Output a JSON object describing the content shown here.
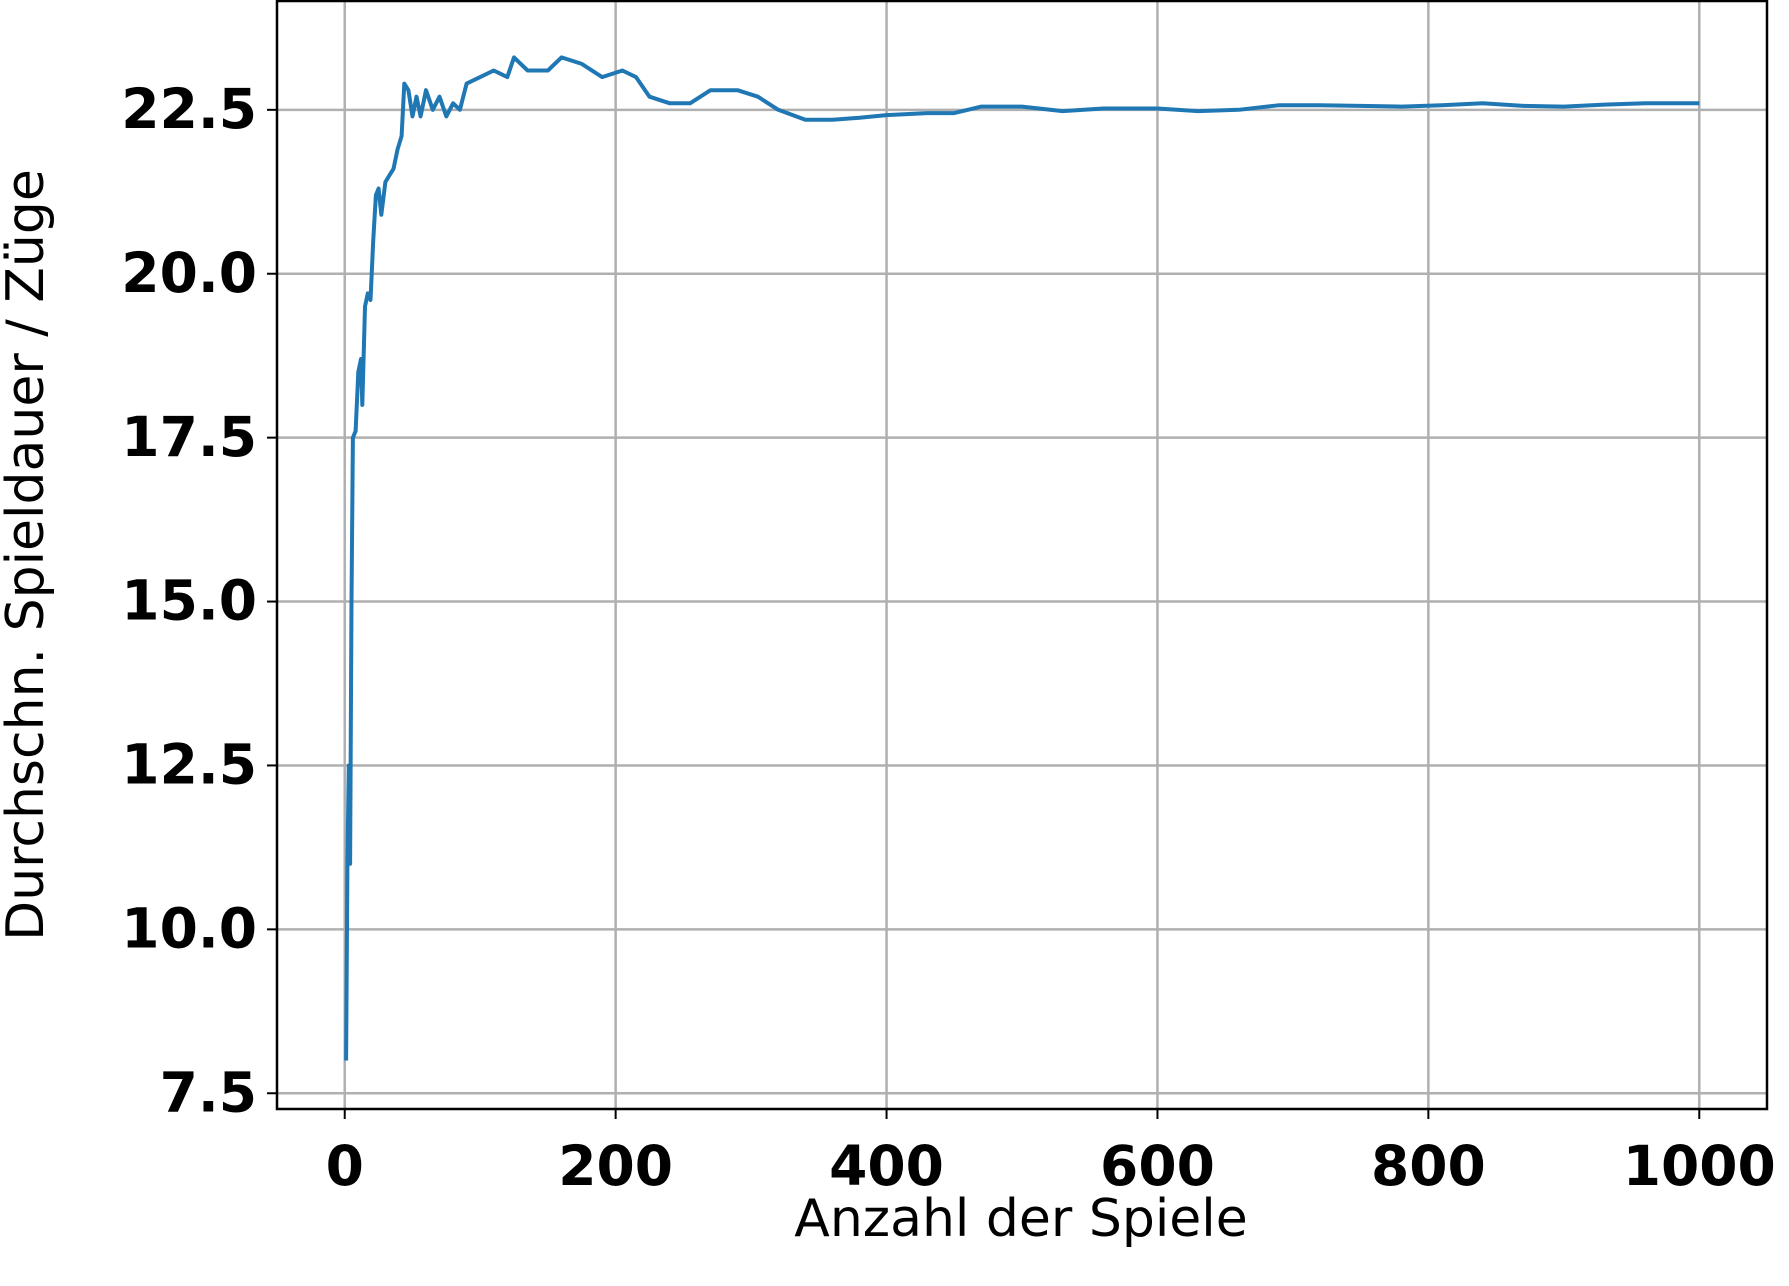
{
  "chart_data": {
    "type": "line",
    "x_label": "Anzahl der Spiele",
    "y_label": "Durchschn. Spieldauer / Züge",
    "x": [
      1,
      2,
      3,
      4,
      5,
      6,
      8,
      10,
      12,
      13,
      15,
      17,
      19,
      21,
      23,
      25,
      27,
      30,
      33,
      36,
      39,
      42,
      44,
      47,
      50,
      53,
      56,
      60,
      65,
      70,
      75,
      80,
      85,
      90,
      100,
      110,
      120,
      125,
      135,
      150,
      160,
      175,
      190,
      205,
      215,
      225,
      240,
      255,
      270,
      290,
      305,
      320,
      340,
      360,
      380,
      400,
      430,
      450,
      470,
      500,
      530,
      560,
      600,
      630,
      660,
      690,
      720,
      750,
      780,
      810,
      840,
      870,
      900,
      930,
      960,
      1000
    ],
    "series": [
      {
        "color": "#1f77b4",
        "values": [
          8.0,
          11.0,
          12.5,
          11.0,
          15.0,
          17.5,
          17.6,
          18.5,
          18.7,
          18.0,
          19.5,
          19.7,
          19.6,
          20.5,
          21.2,
          21.3,
          20.9,
          21.4,
          21.5,
          21.6,
          21.9,
          22.1,
          22.9,
          22.8,
          22.4,
          22.7,
          22.4,
          22.8,
          22.5,
          22.7,
          22.4,
          22.6,
          22.5,
          22.9,
          23.0,
          23.1,
          23.0,
          23.3,
          23.1,
          23.1,
          23.3,
          23.2,
          23.0,
          23.1,
          23.0,
          22.7,
          22.6,
          22.6,
          22.8,
          22.8,
          22.7,
          22.5,
          22.35,
          22.35,
          22.38,
          22.42,
          22.45,
          22.45,
          22.55,
          22.55,
          22.48,
          22.52,
          22.52,
          22.48,
          22.5,
          22.57,
          22.57,
          22.56,
          22.55,
          22.57,
          22.6,
          22.56,
          22.55,
          22.58,
          22.6,
          22.6
        ]
      }
    ],
    "xlim": [
      -50,
      1050
    ],
    "ylim": [
      7.26,
      24.16
    ],
    "xticks": [
      0,
      200,
      400,
      600,
      800,
      1000
    ],
    "yticks": [
      7.5,
      {
        "value": 10,
        "label": "10.0"
      },
      12.5,
      {
        "value": 15,
        "label": "15.0"
      },
      17.5,
      {
        "value": 20,
        "label": "20.0"
      },
      22.5
    ],
    "grid": true
  }
}
